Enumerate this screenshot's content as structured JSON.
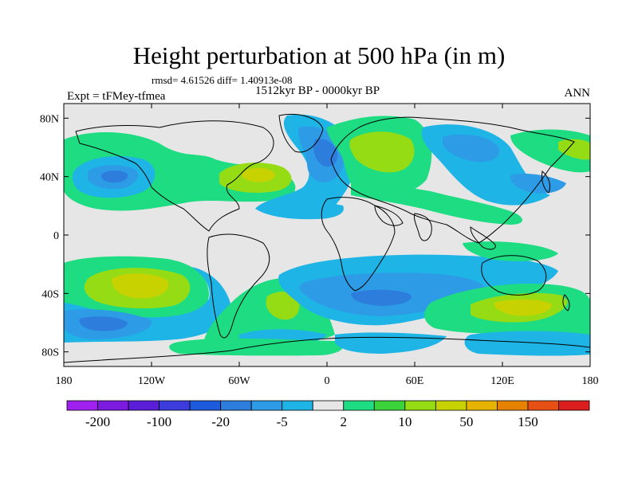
{
  "title": "Height perturbation at 500 hPa (in m)",
  "stats_text": "rmsd= 4.61526 diff= 1.40913e-08",
  "period_text": "1512kyr BP - 0000kyr BP",
  "experiment_text": "Expt = tFMey-tfmea",
  "season_text": "ANN",
  "lat_ticks": [
    {
      "value": 80,
      "label": "80N"
    },
    {
      "value": 40,
      "label": "40N"
    },
    {
      "value": 0,
      "label": "0"
    },
    {
      "value": -40,
      "label": "40S"
    },
    {
      "value": -80,
      "label": "80S"
    }
  ],
  "lon_ticks": [
    {
      "value": -180,
      "label": "180"
    },
    {
      "value": -120,
      "label": "120W"
    },
    {
      "value": -60,
      "label": "60W"
    },
    {
      "value": 0,
      "label": "0"
    },
    {
      "value": 60,
      "label": "60E"
    },
    {
      "value": 120,
      "label": "120E"
    },
    {
      "value": 180,
      "label": "180"
    }
  ],
  "colorbar": {
    "colors": [
      "#a020f0",
      "#7d1ae0",
      "#5a1ed8",
      "#3c3cdc",
      "#1e5adc",
      "#2d7ddc",
      "#2d9be6",
      "#1eb4e6",
      "#e6e6e6",
      "#1edc82",
      "#3cd23c",
      "#96dc14",
      "#c8d200",
      "#e6b400",
      "#e68200",
      "#e65014",
      "#dc1e1e"
    ],
    "labels": [
      "-200",
      "-100",
      "-20",
      "-5",
      "2",
      "10",
      "50",
      "150"
    ]
  },
  "palette": {
    "background": "#e6e6e6",
    "green": "#1edc82",
    "lime": "#96dc14",
    "light_blue": "#1eb4e6",
    "blue": "#2d9be6",
    "dark_blue": "#2d7ddc"
  }
}
